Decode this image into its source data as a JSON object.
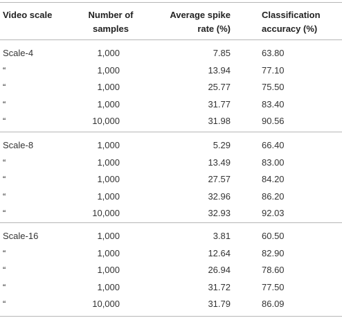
{
  "table": {
    "header": [
      "Video scale",
      "Number of samples",
      "Average spike rate (%)",
      "Classification accuracy (%)"
    ],
    "groups": [
      {
        "rows": [
          [
            "Scale-4",
            "1,000",
            "7.85",
            "63.80"
          ],
          [
            "“",
            "1,000",
            "13.94",
            "77.10"
          ],
          [
            "“",
            "1,000",
            "25.77",
            "75.50"
          ],
          [
            "“",
            "1,000",
            "31.77",
            "83.40"
          ],
          [
            "“",
            "10,000",
            "31.98",
            "90.56"
          ]
        ]
      },
      {
        "rows": [
          [
            "Scale-8",
            "1,000",
            "5.29",
            "66.40"
          ],
          [
            "“",
            "1,000",
            "13.49",
            "83.00"
          ],
          [
            "“",
            "1,000",
            "27.57",
            "84.20"
          ],
          [
            "“",
            "1,000",
            "32.96",
            "86.20"
          ],
          [
            "“",
            "10,000",
            "32.93",
            "92.03"
          ]
        ]
      },
      {
        "rows": [
          [
            "Scale-16",
            "1,000",
            "3.81",
            "60.50"
          ],
          [
            "“",
            "1,000",
            "12.64",
            "82.90"
          ],
          [
            "“",
            "1,000",
            "26.94",
            "78.60"
          ],
          [
            "“",
            "1,000",
            "31.72",
            "77.50"
          ],
          [
            "“",
            "10,000",
            "31.79",
            "86.09"
          ]
        ]
      }
    ]
  }
}
